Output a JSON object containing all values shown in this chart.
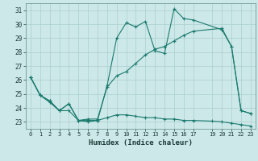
{
  "title": "",
  "xlabel": "Humidex (Indice chaleur)",
  "bg_color": "#cde8e8",
  "grid_color": "#aacfcf",
  "line_color": "#1a7a6e",
  "xlim": [
    -0.5,
    23.5
  ],
  "ylim": [
    22.5,
    31.5
  ],
  "xticks": [
    0,
    1,
    2,
    3,
    4,
    5,
    6,
    7,
    8,
    9,
    10,
    11,
    12,
    13,
    14,
    15,
    16,
    17,
    19,
    20,
    21,
    22,
    23
  ],
  "yticks": [
    23,
    24,
    25,
    26,
    27,
    28,
    29,
    30,
    31
  ],
  "line1_x": [
    0,
    1,
    2,
    3,
    4,
    5,
    6,
    7,
    8,
    9,
    10,
    11,
    12,
    13,
    14,
    15,
    16,
    17,
    20,
    21,
    22,
    23
  ],
  "line1_y": [
    26.2,
    24.9,
    24.5,
    23.8,
    24.3,
    23.1,
    23.0,
    23.1,
    25.6,
    29.0,
    30.1,
    29.8,
    30.2,
    28.1,
    27.9,
    31.1,
    30.4,
    30.3,
    29.6,
    28.4,
    23.8,
    23.6
  ],
  "line2_x": [
    0,
    1,
    2,
    3,
    4,
    5,
    6,
    7,
    8,
    9,
    10,
    11,
    12,
    13,
    14,
    15,
    16,
    17,
    20,
    21,
    22,
    23
  ],
  "line2_y": [
    26.2,
    24.9,
    24.5,
    23.8,
    24.3,
    23.1,
    23.2,
    23.2,
    25.5,
    26.3,
    26.6,
    27.2,
    27.8,
    28.2,
    28.4,
    28.8,
    29.2,
    29.5,
    29.7,
    28.4,
    23.8,
    23.6
  ],
  "line3_x": [
    0,
    1,
    2,
    3,
    4,
    5,
    6,
    7,
    8,
    9,
    10,
    11,
    12,
    13,
    14,
    15,
    16,
    17,
    19,
    20,
    21,
    22,
    23
  ],
  "line3_y": [
    26.2,
    24.9,
    24.4,
    23.8,
    23.8,
    23.1,
    23.1,
    23.1,
    23.3,
    23.5,
    23.5,
    23.4,
    23.3,
    23.3,
    23.2,
    23.2,
    23.1,
    23.1,
    23.05,
    23.0,
    22.9,
    22.8,
    22.7
  ]
}
